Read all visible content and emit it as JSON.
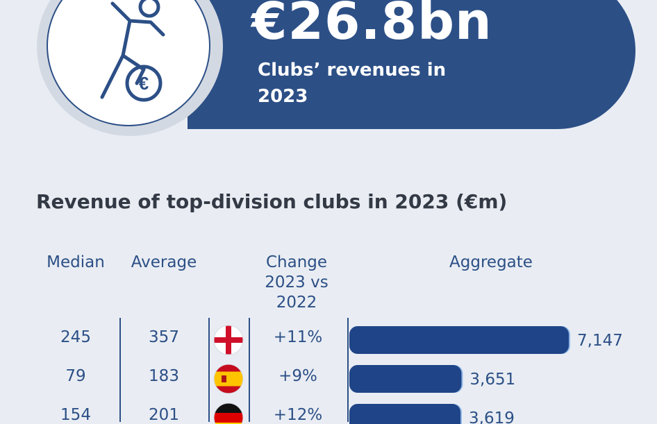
{
  "headline": {
    "value": "€26.8bn",
    "caption": "Clubs’ revenues in 2023"
  },
  "icon": {
    "name": "footballer-euro-icon",
    "accent": "#2c4f86"
  },
  "colors": {
    "brand": "#2c4f86",
    "background": "#e9edf3",
    "bar": "#1f4487",
    "bar_edge": "#8fb6e6"
  },
  "columns": {
    "median": "Median",
    "average": "Average",
    "change": "Change 2023 vs 2022",
    "aggregate": "Aggregate"
  },
  "chart_data": {
    "type": "bar",
    "title": "Revenue of top-division clubs in 2023 (€m)",
    "orientation": "horizontal",
    "rows": [
      {
        "flag": "england-flag",
        "median": "245",
        "average": "357",
        "change": "+11%",
        "aggregate": 7147,
        "aggregate_label": "7,147"
      },
      {
        "flag": "spain-flag",
        "median": "79",
        "average": "183",
        "change": "+9%",
        "aggregate": 3651,
        "aggregate_label": "3,651"
      },
      {
        "flag": "germany-flag",
        "median": "154",
        "average": "201",
        "change": "+12%",
        "aggregate": 3619,
        "aggregate_label": "3,619"
      }
    ]
  }
}
